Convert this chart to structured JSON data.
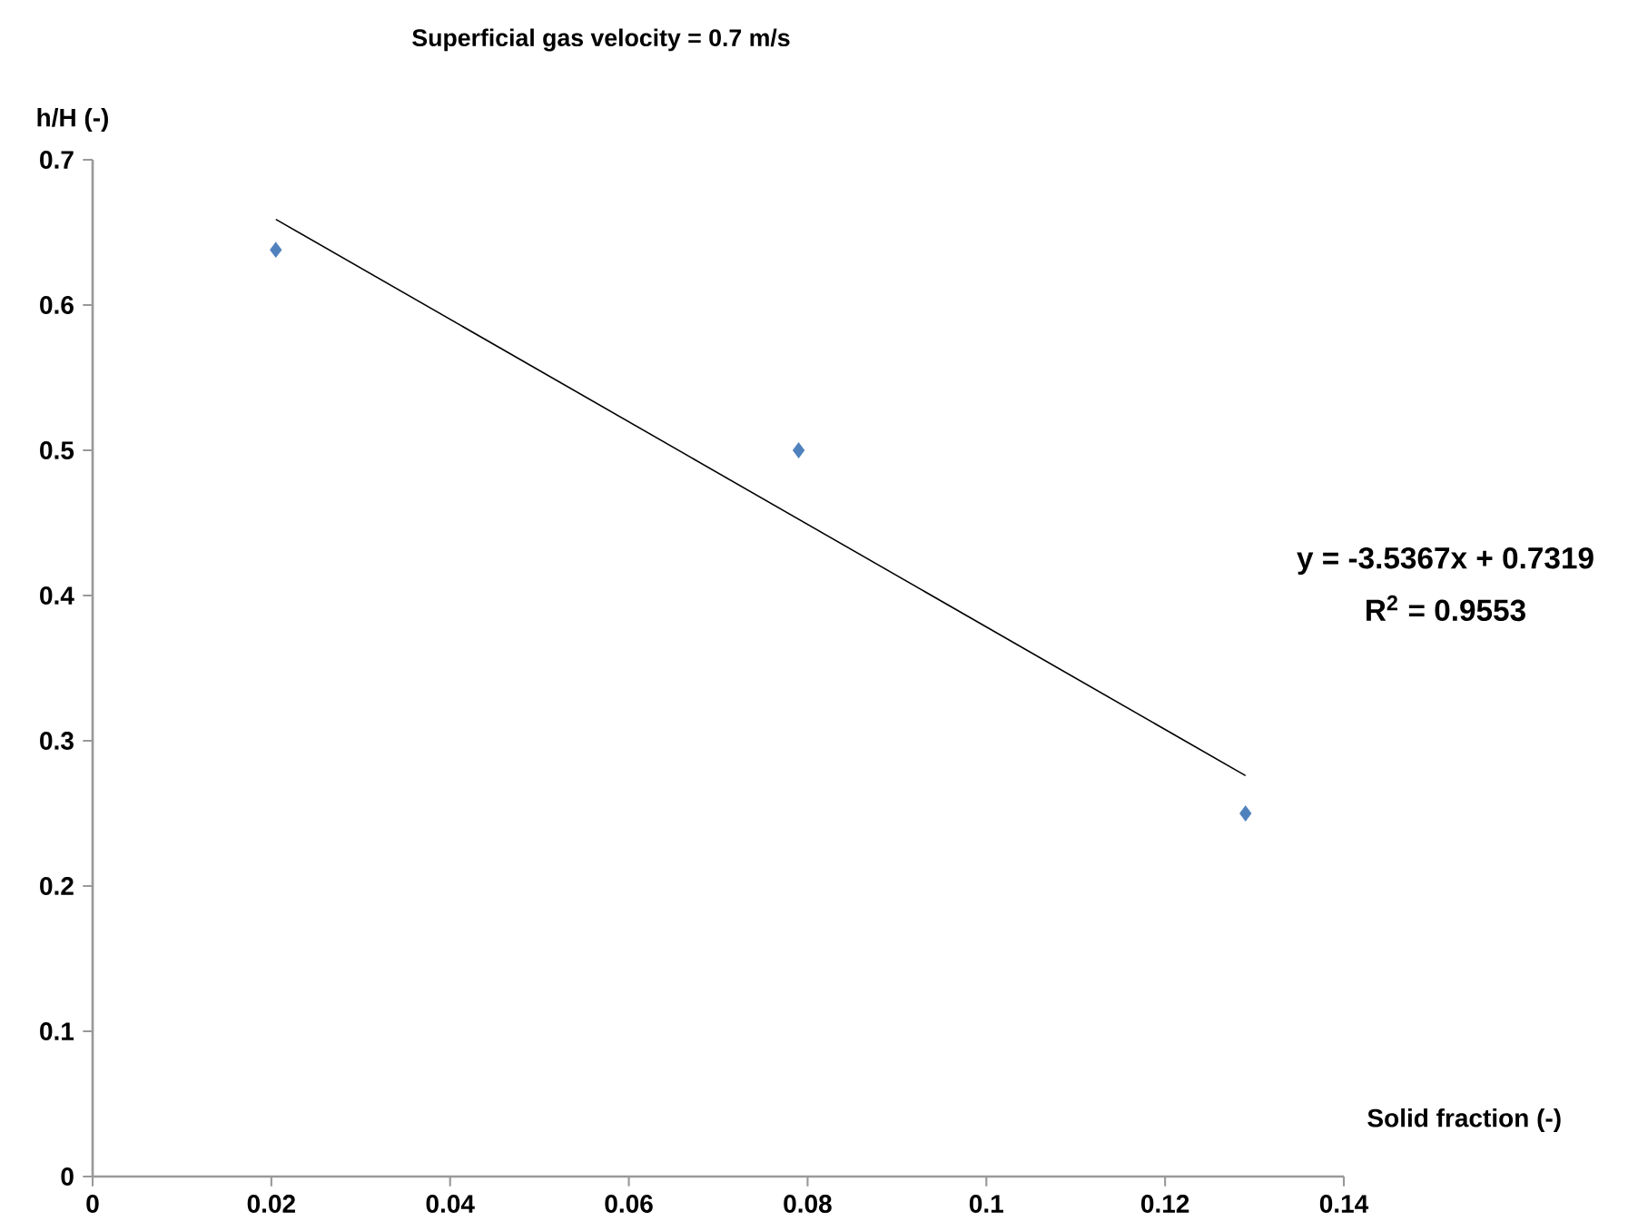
{
  "chart_data": {
    "type": "scatter",
    "title": "Superficial gas velocity = 0.7 m/s",
    "xlabel": "Solid fraction (-)",
    "ylabel": "h/H (-)",
    "annotations": [
      "y = -3.5367x + 0.7319",
      "R$^{2}$ = 0.9553"
    ],
    "xlim": [
      0,
      0.14
    ],
    "ylim": [
      0,
      0.7
    ],
    "xticks": [
      0,
      0.02,
      0.04,
      0.06,
      0.08,
      0.1,
      0.12,
      0.14
    ],
    "yticks": [
      0,
      0.1,
      0.2,
      0.3,
      0.4,
      0.5,
      0.6,
      0.7
    ],
    "series": [
      {
        "type": "scatter",
        "color": "#4f81bd",
        "marker": "diamond",
        "x": [
          0.0205,
          0.079,
          0.129
        ],
        "values": [
          0.638,
          0.5,
          0.25
        ]
      },
      {
        "type": "line",
        "color": "#000000",
        "marker": "none",
        "x": [
          0.0205,
          0.129
        ],
        "values": [
          0.659,
          0.276
        ]
      }
    ]
  }
}
